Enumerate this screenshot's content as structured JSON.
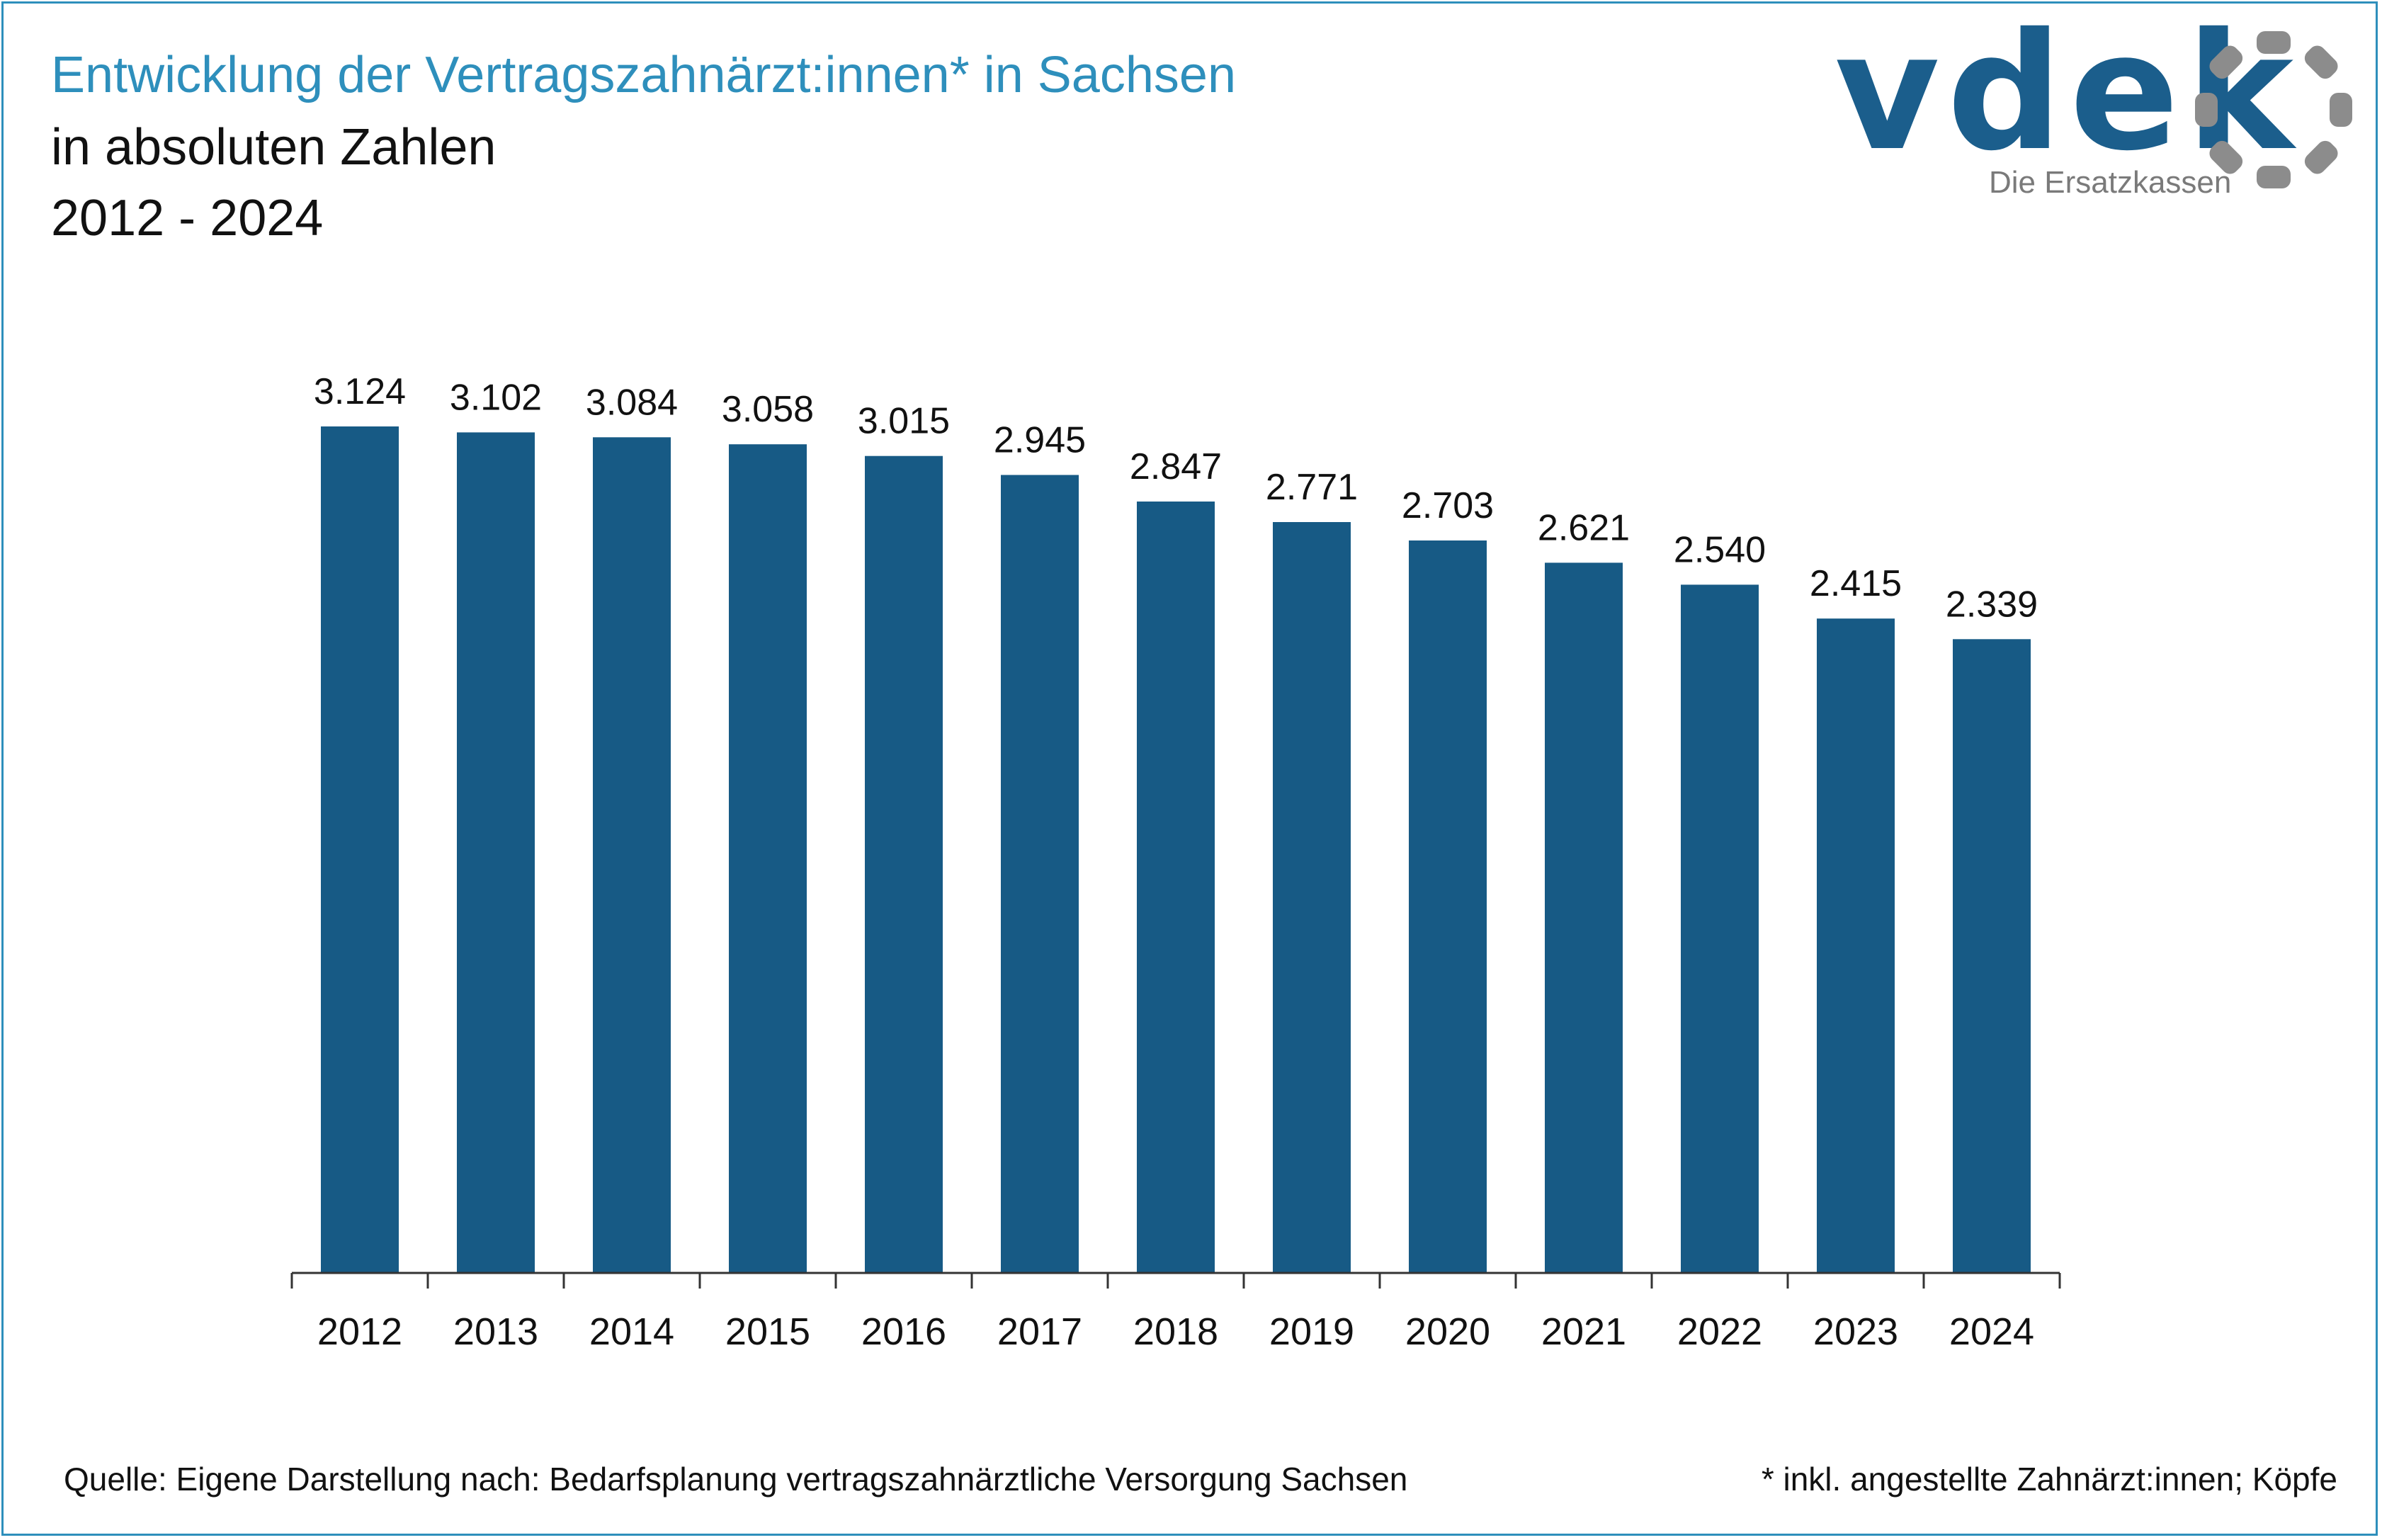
{
  "header": {
    "title": "Entwicklung der Vertragszahnärzt:innen* in Sachsen",
    "subtitle": "in absoluten Zahlen",
    "period": "2012 - 2024"
  },
  "logo": {
    "wordmark": "vdek",
    "tagline": "Die Ersatzkassen"
  },
  "colors": {
    "title": "#2e8fbc",
    "bar": "#175a85",
    "logo_blue": "#1b5e8c",
    "logo_grey": "#8c8c8c"
  },
  "chart_data": {
    "type": "bar",
    "title": "Entwicklung der Vertragszahnärzt:innen* in Sachsen",
    "subtitle": "in absoluten Zahlen",
    "categories": [
      "2012",
      "2013",
      "2014",
      "2015",
      "2016",
      "2017",
      "2018",
      "2019",
      "2020",
      "2021",
      "2022",
      "2023",
      "2024"
    ],
    "values": [
      3124,
      3102,
      3084,
      3058,
      3015,
      2945,
      2847,
      2771,
      2703,
      2621,
      2540,
      2415,
      2339
    ],
    "value_labels": [
      "3.124",
      "3.102",
      "3.084",
      "3.058",
      "3.015",
      "2.945",
      "2.847",
      "2.771",
      "2.703",
      "2.621",
      "2.540",
      "2.415",
      "2.339"
    ],
    "xlabel": "",
    "ylabel": "",
    "ylim": [
      0,
      3124
    ],
    "grid": false,
    "legend": "none"
  },
  "footer": {
    "source": "Quelle: Eigene Darstellung nach: Bedarfsplanung vertragszahnärztliche Versorgung Sachsen",
    "note": "* inkl. angestellte Zahnärzt:innen; Köpfe"
  }
}
